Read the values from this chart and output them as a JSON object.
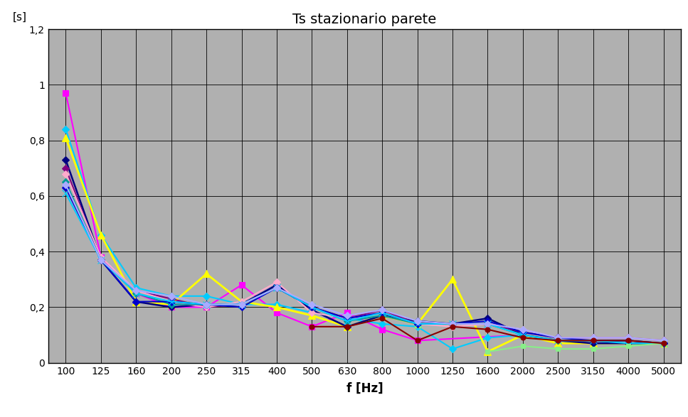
{
  "title": "Ts stazionario parete",
  "xlabel": "f [Hz]",
  "ylabel": "[s]",
  "x_labels": [
    "100",
    "125",
    "160",
    "200",
    "250",
    "315",
    "400",
    "500",
    "630",
    "800",
    "1000",
    "1250",
    "1600",
    "2000",
    "2500",
    "3150",
    "4000",
    "5000"
  ],
  "x_values": [
    100,
    125,
    160,
    200,
    250,
    315,
    400,
    500,
    630,
    800,
    1000,
    1250,
    1600,
    2000,
    2500,
    3150,
    4000,
    5000
  ],
  "ylim": [
    0,
    1.2
  ],
  "yticks": [
    0,
    0.2,
    0.4,
    0.6,
    0.8,
    1.0,
    1.2
  ],
  "ytick_labels": [
    "0",
    "0,2",
    "0,4",
    "0,6",
    "0,8",
    "1",
    "1,2"
  ],
  "plot_bg_color": "#b0b0b0",
  "fig_bg_color": "#ffffff",
  "series": [
    {
      "color": "#ff00ff",
      "marker": "s",
      "markersize": 6,
      "linewidth": 1.5,
      "values": [
        0.97,
        0.38,
        0.25,
        0.2,
        0.2,
        0.28,
        0.18,
        0.13,
        0.18,
        0.12,
        0.08,
        null,
        null,
        0.1,
        0.07,
        0.07,
        0.08,
        0.07
      ]
    },
    {
      "color": "#00ccff",
      "marker": "D",
      "markersize": 5,
      "linewidth": 1.5,
      "values": [
        0.84,
        0.46,
        0.27,
        0.24,
        0.24,
        0.21,
        0.21,
        0.18,
        0.16,
        0.14,
        0.13,
        0.05,
        0.09,
        0.1,
        0.08,
        0.07,
        0.08,
        0.07
      ]
    },
    {
      "color": "#ffff00",
      "marker": "^",
      "markersize": 7,
      "linewidth": 2.0,
      "values": [
        0.81,
        0.46,
        0.22,
        0.21,
        0.32,
        0.22,
        0.2,
        0.17,
        0.13,
        0.17,
        0.14,
        0.3,
        0.04,
        0.1,
        0.07,
        0.07,
        0.07,
        0.07
      ]
    },
    {
      "color": "#000080",
      "marker": "D",
      "markersize": 5,
      "linewidth": 1.8,
      "values": [
        0.73,
        0.37,
        0.22,
        0.2,
        0.21,
        0.21,
        0.28,
        0.19,
        0.13,
        0.17,
        0.15,
        0.14,
        0.16,
        0.1,
        0.08,
        0.07,
        0.07,
        0.07
      ]
    },
    {
      "color": "#800080",
      "marker": "D",
      "markersize": 5,
      "linewidth": 1.5,
      "values": [
        0.7,
        0.37,
        0.26,
        0.23,
        0.2,
        0.21,
        0.27,
        0.2,
        0.16,
        0.19,
        0.14,
        0.14,
        0.14,
        0.11,
        0.09,
        0.09,
        0.09,
        0.08
      ]
    },
    {
      "color": "#ffaacc",
      "marker": "D",
      "markersize": 5,
      "linewidth": 1.5,
      "values": [
        0.68,
        0.38,
        0.26,
        0.22,
        0.2,
        0.22,
        0.29,
        0.18,
        0.16,
        0.18,
        0.14,
        0.13,
        0.14,
        0.12,
        0.09,
        0.09,
        0.09,
        0.08
      ]
    },
    {
      "color": "#009999",
      "marker": "D",
      "markersize": 5,
      "linewidth": 1.5,
      "values": [
        0.65,
        0.37,
        0.25,
        0.21,
        0.21,
        0.21,
        0.27,
        0.2,
        0.15,
        0.17,
        0.14,
        0.14,
        0.14,
        0.1,
        0.08,
        0.08,
        0.08,
        0.07
      ]
    },
    {
      "color": "#0000cc",
      "marker": "D",
      "markersize": 5,
      "linewidth": 1.5,
      "values": [
        0.63,
        0.37,
        0.22,
        0.22,
        0.21,
        0.2,
        0.27,
        0.2,
        0.16,
        0.18,
        0.14,
        0.14,
        0.15,
        0.11,
        0.09,
        0.08,
        0.08,
        0.07
      ]
    },
    {
      "color": "#00ccff",
      "marker": "x",
      "markersize": 7,
      "linewidth": 1.5,
      "values": [
        0.61,
        0.37,
        0.25,
        0.22,
        0.21,
        0.21,
        0.27,
        0.2,
        0.15,
        0.18,
        0.14,
        0.14,
        0.14,
        0.1,
        0.08,
        0.08,
        0.07,
        0.07
      ]
    },
    {
      "color": "#aaaaff",
      "marker": "D",
      "markersize": 5,
      "linewidth": 1.5,
      "values": [
        0.64,
        0.37,
        0.26,
        0.24,
        0.21,
        0.21,
        0.27,
        0.21,
        0.17,
        0.19,
        0.15,
        0.14,
        0.14,
        0.12,
        0.09,
        0.09,
        0.09,
        0.08
      ]
    },
    {
      "color": "#88ee88",
      "marker": "s",
      "markersize": 5,
      "linewidth": 1.5,
      "values": [
        null,
        null,
        null,
        null,
        null,
        null,
        null,
        null,
        null,
        null,
        null,
        null,
        0.04,
        0.06,
        0.05,
        0.05,
        0.06,
        0.07
      ]
    },
    {
      "color": "#880000",
      "marker": "o",
      "markersize": 5,
      "linewidth": 1.5,
      "values": [
        null,
        null,
        null,
        null,
        null,
        null,
        null,
        0.13,
        0.13,
        0.16,
        0.08,
        0.13,
        0.12,
        0.09,
        0.08,
        0.08,
        0.08,
        0.07
      ]
    }
  ]
}
